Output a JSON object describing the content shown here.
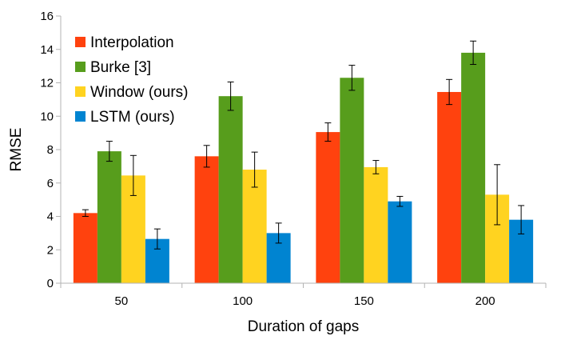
{
  "chart_data": {
    "type": "bar",
    "title": "",
    "xlabel": "Duration of gaps",
    "ylabel": "RMSE",
    "categories": [
      "50",
      "100",
      "150",
      "200"
    ],
    "ylim": [
      0,
      16
    ],
    "yticks": [
      "0",
      "2",
      "4",
      "6",
      "8",
      "10",
      "12",
      "14",
      "16"
    ],
    "grid": false,
    "legend_position": "top-left",
    "series": [
      {
        "name": "Interpolation",
        "color": "#FF420E",
        "values": [
          4.2,
          7.6,
          9.05,
          11.45
        ],
        "errors": [
          0.2,
          0.65,
          0.55,
          0.75
        ]
      },
      {
        "name": "Burke [3]",
        "color": "#579D1C",
        "values": [
          7.9,
          11.2,
          12.3,
          13.8
        ],
        "errors": [
          0.6,
          0.85,
          0.75,
          0.7
        ]
      },
      {
        "name": "Window (ours)",
        "color": "#FFD320",
        "values": [
          6.45,
          6.8,
          6.95,
          5.3
        ],
        "errors": [
          1.2,
          1.05,
          0.4,
          1.8
        ]
      },
      {
        "name": "LSTM (ours)",
        "color": "#0084D1",
        "values": [
          2.65,
          3.0,
          4.9,
          3.8
        ],
        "errors": [
          0.6,
          0.6,
          0.3,
          0.85
        ]
      }
    ]
  }
}
